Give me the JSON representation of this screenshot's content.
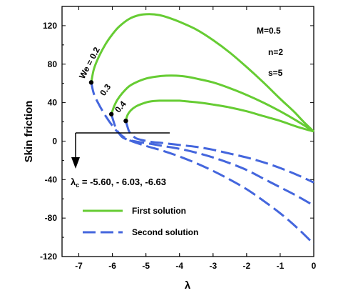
{
  "chart_data": {
    "type": "line",
    "xlabel": "λ",
    "ylabel": "Skin friction",
    "xlim": [
      -7.5,
      0
    ],
    "ylim": [
      -120,
      140
    ],
    "xticks": [
      "-7",
      "-6",
      "-5",
      "-4",
      "-3",
      "-2",
      "-1",
      "0"
    ],
    "yticks": [
      "120",
      "80",
      "40",
      "0",
      "-40",
      "-80",
      "-120"
    ],
    "parameters": [
      "M=0.5",
      "n=2",
      "s=5"
    ],
    "legend": {
      "position": "bottom-left",
      "entries": [
        {
          "label": "First solution",
          "style": "solid",
          "color": "#66cc33"
        },
        {
          "label": "Second solution",
          "style": "dashed",
          "color": "#4466dd"
        }
      ]
    },
    "critical_annotation": {
      "prefix": "λ",
      "subscript": "c",
      "text": " = -5.60, - 6.03, -6.63"
    },
    "series": [
      {
        "curve_label": "We = 0.2",
        "critical_lambda": -6.63,
        "critical_value": 61,
        "first_solution": {
          "x": [
            -6.63,
            -6.55,
            -6.4,
            -6.2,
            -6.0,
            -5.8,
            -5.5,
            -5.2,
            -4.9,
            -4.6,
            -4.3,
            -4.0,
            -3.5,
            -3.0,
            -2.5,
            -2.0,
            -1.5,
            -1.0,
            -0.6,
            -0.3,
            0.0
          ],
          "y": [
            61,
            75,
            88,
            101,
            111,
            119,
            127,
            131,
            132,
            131,
            128,
            124,
            116,
            105,
            92,
            77,
            61,
            44,
            31,
            20,
            10
          ]
        },
        "second_solution": {
          "x": [
            -6.63,
            -6.55,
            -6.4,
            -6.2,
            -6.0,
            -5.8,
            -5.5,
            -5.0,
            -4.5,
            -4.0,
            -3.5,
            -3.0,
            -2.5,
            -2.0,
            -1.5,
            -1.0,
            -0.5,
            0.0
          ],
          "y": [
            61,
            49,
            38,
            26,
            16,
            8,
            1,
            -5,
            -10,
            -16,
            -23,
            -31,
            -40,
            -50,
            -62,
            -75,
            -90,
            -107
          ]
        }
      },
      {
        "curve_label": "0.3",
        "critical_lambda": -6.03,
        "critical_value": 28,
        "first_solution": {
          "x": [
            -6.03,
            -5.95,
            -5.85,
            -5.7,
            -5.5,
            -5.3,
            -5.0,
            -4.7,
            -4.4,
            -4.1,
            -3.8,
            -3.5,
            -3.0,
            -2.5,
            -2.0,
            -1.5,
            -1.0,
            -0.5,
            0.0
          ],
          "y": [
            28,
            36,
            43,
            50,
            57,
            61,
            65,
            67,
            68,
            68,
            67,
            65,
            61,
            55,
            48,
            40,
            31,
            21,
            10
          ]
        },
        "second_solution": {
          "x": [
            -6.03,
            -5.97,
            -5.9,
            -5.8,
            -5.7,
            -5.5,
            -5.2,
            -5.0,
            -4.5,
            -4.0,
            -3.5,
            -3.0,
            -2.5,
            -2.0,
            -1.5,
            -1.0,
            -0.5,
            0.0
          ],
          "y": [
            28,
            21,
            14,
            8,
            4,
            1,
            -1,
            -2,
            -5,
            -8,
            -12,
            -17,
            -23,
            -30,
            -39,
            -48,
            -57,
            -67
          ]
        }
      },
      {
        "curve_label": "0.4",
        "critical_lambda": -5.6,
        "critical_value": 21,
        "first_solution": {
          "x": [
            -5.6,
            -5.55,
            -5.45,
            -5.3,
            -5.1,
            -4.9,
            -4.6,
            -4.3,
            -4.0,
            -3.7,
            -3.4,
            -3.0,
            -2.5,
            -2.0,
            -1.5,
            -1.0,
            -0.5,
            0.0
          ],
          "y": [
            21,
            27,
            32,
            36,
            39,
            41,
            42,
            42,
            42,
            41,
            40,
            38,
            35,
            31,
            26,
            21,
            15,
            10
          ]
        },
        "second_solution": {
          "x": [
            -5.6,
            -5.55,
            -5.5,
            -5.4,
            -5.3,
            -5.1,
            -4.8,
            -4.5,
            -4.0,
            -3.5,
            -3.0,
            -2.5,
            -2.0,
            -1.5,
            -1.0,
            -0.5,
            0.0
          ],
          "y": [
            21,
            15,
            10,
            6,
            3,
            1,
            -1,
            -2,
            -4,
            -6,
            -9,
            -13,
            -17,
            -22,
            -28,
            -35,
            -43
          ]
        }
      }
    ]
  }
}
